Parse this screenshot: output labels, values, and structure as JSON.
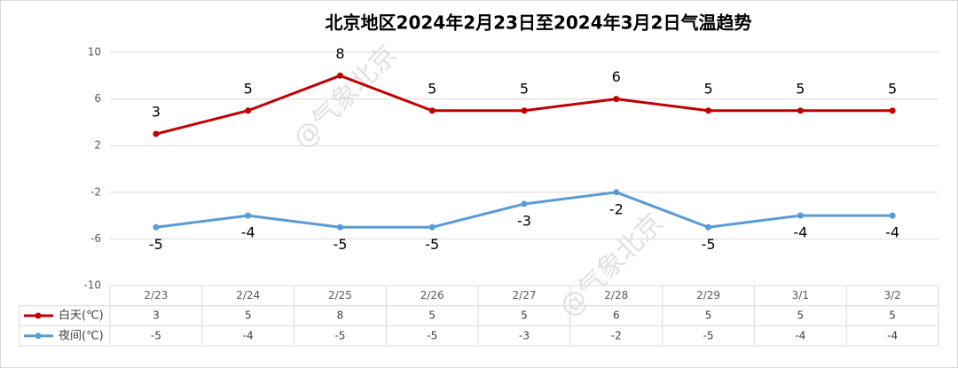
{
  "chart_data": {
    "type": "line",
    "title": "北京地区2024年2月23日至2024年3月2日气温趋势",
    "watermark": "@气象北京",
    "categories": [
      "2/23",
      "2/24",
      "2/25",
      "2/26",
      "2/27",
      "2/28",
      "2/29",
      "3/1",
      "3/2"
    ],
    "series": [
      {
        "name": "白天(℃)",
        "color": "#c00000",
        "values": [
          3,
          5,
          8,
          5,
          5,
          6,
          5,
          5,
          5
        ]
      },
      {
        "name": "夜间(℃)",
        "color": "#5b9bd5",
        "values": [
          -5,
          -4,
          -5,
          -5,
          -3,
          -2,
          -5,
          -4,
          -4
        ]
      }
    ],
    "ylim": [
      -10,
      10
    ],
    "yticks": [
      -10,
      -6,
      -2,
      2,
      6,
      10
    ],
    "grid": true,
    "data_table": true
  }
}
